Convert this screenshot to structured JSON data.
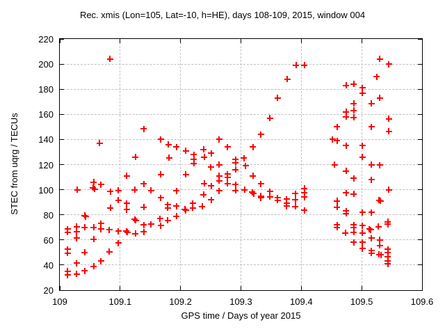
{
  "title": "Rec. xmis (Lon=105, Lat=-10, h=HE), days 108-109, 2015, window 004",
  "chart_data": {
    "type": "scatter",
    "title": "Rec. xmis (Lon=105, Lat=-10, h=HE), days 108-109, 2015, window 004",
    "xlabel": "GPS time / Days of year 2015",
    "ylabel": "STEC from uqrg / TECUs",
    "xlim": [
      109,
      109.6
    ],
    "ylim": [
      20,
      220
    ],
    "xticks": [
      109,
      109.1,
      109.2,
      109.3,
      109.4,
      109.5,
      109.6
    ],
    "xtick_labels": [
      "109",
      "109.1",
      "109.2",
      "109.3",
      "109.4",
      "109.5",
      "109.6"
    ],
    "yticks": [
      20,
      40,
      60,
      80,
      100,
      120,
      140,
      160,
      180,
      200,
      220
    ],
    "ytick_labels": [
      "20",
      "40",
      "60",
      "80",
      "100",
      "120",
      "140",
      "160",
      "180",
      "200",
      "220"
    ],
    "grid": true,
    "legend": false,
    "marker": "plus",
    "marker_color": "#ff0000",
    "grid_color": "#c0c0c0",
    "border_color": "#000000",
    "points": [
      [
        109.013,
        68.5
      ],
      [
        109.013,
        66
      ],
      [
        109.013,
        52.5
      ],
      [
        109.013,
        49.5
      ],
      [
        109.013,
        35
      ],
      [
        109.013,
        32
      ],
      [
        109.028,
        70.5
      ],
      [
        109.028,
        66.5
      ],
      [
        109.028,
        61.5
      ],
      [
        109.028,
        41.5
      ],
      [
        109.028,
        33
      ],
      [
        109.029,
        100
      ],
      [
        109.041,
        79.5
      ],
      [
        109.043,
        78.5
      ],
      [
        109.041,
        70
      ],
      [
        109.041,
        50
      ],
      [
        109.041,
        35.5
      ],
      [
        109.056,
        106
      ],
      [
        109.055,
        101.5
      ],
      [
        109.058,
        100.5
      ],
      [
        109.056,
        70
      ],
      [
        109.056,
        60.5
      ],
      [
        109.056,
        39
      ],
      [
        109.066,
        137
      ],
      [
        109.068,
        104
      ],
      [
        109.068,
        73
      ],
      [
        109.068,
        68.5
      ],
      [
        109.068,
        43
      ],
      [
        109.083,
        204
      ],
      [
        109.082,
        68
      ],
      [
        109.084,
        98.5
      ],
      [
        109.084,
        85.5
      ],
      [
        109.082,
        50.5
      ],
      [
        109.097,
        99.5
      ],
      [
        109.097,
        91.5
      ],
      [
        109.097,
        67
      ],
      [
        109.097,
        57.5
      ],
      [
        109.111,
        111
      ],
      [
        109.111,
        89
      ],
      [
        109.111,
        84
      ],
      [
        109.11,
        67
      ],
      [
        109.112,
        66
      ],
      [
        109.124,
        100
      ],
      [
        109.125,
        126
      ],
      [
        109.124,
        76.5
      ],
      [
        109.126,
        75.5
      ],
      [
        109.125,
        65
      ],
      [
        109.139,
        148.5
      ],
      [
        109.139,
        104.5
      ],
      [
        109.139,
        86
      ],
      [
        109.139,
        72
      ],
      [
        109.139,
        66.5
      ],
      [
        109.151,
        99.5
      ],
      [
        109.151,
        72.5
      ],
      [
        109.166,
        77
      ],
      [
        109.167,
        71.5
      ],
      [
        109.167,
        93.5
      ],
      [
        109.167,
        112
      ],
      [
        109.167,
        140
      ],
      [
        109.179,
        88
      ],
      [
        109.179,
        85.5
      ],
      [
        109.179,
        75.5
      ],
      [
        109.18,
        136
      ],
      [
        109.181,
        125.5
      ],
      [
        109.193,
        134
      ],
      [
        109.193,
        99
      ],
      [
        109.193,
        87
      ],
      [
        109.193,
        79
      ],
      [
        109.207,
        84.5
      ],
      [
        109.209,
        83.5
      ],
      [
        109.209,
        131
      ],
      [
        109.209,
        112
      ],
      [
        109.22,
        89
      ],
      [
        109.22,
        85.5
      ],
      [
        109.222,
        128
      ],
      [
        109.222,
        124
      ],
      [
        109.222,
        121
      ],
      [
        109.236,
        86.5
      ],
      [
        109.238,
        132
      ],
      [
        109.239,
        126
      ],
      [
        109.239,
        105
      ],
      [
        109.238,
        96
      ],
      [
        109.251,
        129
      ],
      [
        109.25,
        118
      ],
      [
        109.251,
        103
      ],
      [
        109.251,
        92
      ],
      [
        109.264,
        140
      ],
      [
        109.264,
        120
      ],
      [
        109.264,
        111
      ],
      [
        109.264,
        107
      ],
      [
        109.264,
        99
      ],
      [
        109.278,
        134
      ],
      [
        109.278,
        112.5
      ],
      [
        109.278,
        110
      ],
      [
        109.278,
        105
      ],
      [
        109.291,
        124
      ],
      [
        109.291,
        121.5
      ],
      [
        109.291,
        116
      ],
      [
        109.291,
        104
      ],
      [
        109.291,
        99.5
      ],
      [
        109.305,
        125
      ],
      [
        109.308,
        119
      ],
      [
        109.306,
        100
      ],
      [
        109.32,
        134
      ],
      [
        109.32,
        111
      ],
      [
        109.319,
        98
      ],
      [
        109.321,
        97
      ],
      [
        109.333,
        144
      ],
      [
        109.333,
        104.5
      ],
      [
        109.333,
        95
      ],
      [
        109.333,
        93.5
      ],
      [
        109.348,
        157
      ],
      [
        109.348,
        98.5
      ],
      [
        109.348,
        94.5
      ],
      [
        109.361,
        173
      ],
      [
        109.361,
        93.5
      ],
      [
        109.361,
        91.5
      ],
      [
        109.377,
        188
      ],
      [
        109.376,
        92.5
      ],
      [
        109.376,
        89
      ],
      [
        109.376,
        87
      ],
      [
        109.391,
        199
      ],
      [
        109.39,
        97
      ],
      [
        109.39,
        92
      ],
      [
        109.39,
        86.5
      ],
      [
        109.405,
        199
      ],
      [
        109.405,
        101
      ],
      [
        109.405,
        97.5
      ],
      [
        109.405,
        94
      ],
      [
        109.405,
        83.5
      ],
      [
        109.452,
        140
      ],
      [
        109.459,
        139
      ],
      [
        109.459,
        150
      ],
      [
        109.455,
        120
      ],
      [
        109.459,
        91
      ],
      [
        109.459,
        86
      ],
      [
        109.459,
        72
      ],
      [
        109.459,
        70
      ],
      [
        109.474,
        183
      ],
      [
        109.474,
        162
      ],
      [
        109.474,
        158
      ],
      [
        109.474,
        135
      ],
      [
        109.474,
        115
      ],
      [
        109.474,
        97.5
      ],
      [
        109.474,
        83
      ],
      [
        109.474,
        81
      ],
      [
        109.473,
        65.5
      ],
      [
        109.487,
        184
      ],
      [
        109.487,
        168.5
      ],
      [
        109.487,
        163
      ],
      [
        109.487,
        157.5
      ],
      [
        109.487,
        109
      ],
      [
        109.487,
        96.5
      ],
      [
        109.487,
        72
      ],
      [
        109.487,
        70
      ],
      [
        109.487,
        66
      ],
      [
        109.487,
        58
      ],
      [
        109.501,
        181
      ],
      [
        109.501,
        177
      ],
      [
        109.501,
        135
      ],
      [
        109.501,
        126
      ],
      [
        109.501,
        82
      ],
      [
        109.501,
        71.5
      ],
      [
        109.501,
        65.5
      ],
      [
        109.501,
        58
      ],
      [
        109.501,
        53
      ],
      [
        109.516,
        168.5
      ],
      [
        109.516,
        150
      ],
      [
        109.516,
        120
      ],
      [
        109.516,
        108
      ],
      [
        109.516,
        82
      ],
      [
        109.513,
        68.5
      ],
      [
        109.515,
        68
      ],
      [
        109.516,
        61.5
      ],
      [
        109.516,
        51.5
      ],
      [
        109.516,
        49.5
      ],
      [
        109.525,
        190
      ],
      [
        109.53,
        204
      ],
      [
        109.53,
        173
      ],
      [
        109.53,
        119.5
      ],
      [
        109.529,
        91.5
      ],
      [
        109.531,
        91
      ],
      [
        109.528,
        70.5
      ],
      [
        109.53,
        60
      ],
      [
        109.53,
        55.5
      ],
      [
        109.529,
        48.5
      ],
      [
        109.532,
        48
      ],
      [
        109.545,
        200
      ],
      [
        109.545,
        156.5
      ],
      [
        109.545,
        146.5
      ],
      [
        109.545,
        100
      ],
      [
        109.543,
        74.5
      ],
      [
        109.543,
        72.5
      ],
      [
        109.543,
        52.5
      ],
      [
        109.543,
        50
      ],
      [
        109.543,
        46.5
      ],
      [
        109.543,
        43.5
      ],
      [
        109.543,
        41
      ]
    ]
  }
}
